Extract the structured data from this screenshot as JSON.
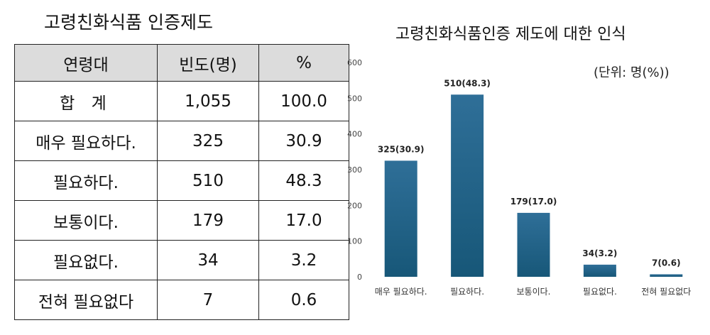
{
  "table": {
    "title": "고령친화식품  인증제도",
    "headers": [
      "연령대",
      "빈도(명)",
      "%"
    ],
    "rows": [
      [
        "합  계",
        "1,055",
        "100.0"
      ],
      [
        "매우 필요하다.",
        "325",
        "30.9"
      ],
      [
        "필요하다.",
        "510",
        "48.3"
      ],
      [
        "보통이다.",
        "179",
        "17.0"
      ],
      [
        "필요없다.",
        "34",
        "3.2"
      ],
      [
        "전혀 필요없다",
        "7",
        "0.6"
      ]
    ]
  },
  "chart_data": {
    "type": "bar",
    "title": "고령친화식품인증 제도에 대한 인식",
    "unit_note": "(단위: 명(%))",
    "categories": [
      "매우 필요하다.",
      "필요하다.",
      "보통이다.",
      "필요없다.",
      "전혀 필요없다"
    ],
    "values": [
      325,
      510,
      179,
      34,
      7
    ],
    "data_labels": [
      "325(30.9)",
      "510(48.3)",
      "179(17.0)",
      "34(3.2)",
      "7(0.6)"
    ],
    "ylim": [
      0,
      600
    ],
    "yticks": [
      0,
      100,
      200,
      300,
      400,
      500,
      600
    ],
    "grid": false,
    "bar_color_top": "#2f6f98",
    "bar_color_bottom": "#175778"
  }
}
